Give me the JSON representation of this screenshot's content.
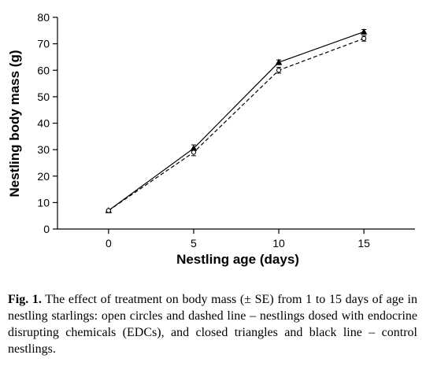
{
  "chart_data": {
    "type": "line",
    "title": "",
    "xlabel": "Nestling age (days)",
    "ylabel": "Nestling body mass (g)",
    "xlim": [
      -3,
      18
    ],
    "ylim": [
      0,
      80
    ],
    "x_ticks": [
      0,
      5,
      10,
      15
    ],
    "y_ticks": [
      0,
      10,
      20,
      30,
      40,
      50,
      60,
      70,
      80
    ],
    "grid": false,
    "series": [
      {
        "x": [
          0,
          5,
          10,
          15
        ],
        "values": [
          7,
          30.5,
          63,
          74.5
        ],
        "error": [
          0.3,
          1.3,
          0.9,
          0.9
        ],
        "marker": "triangle-filled",
        "line_style": "solid",
        "color": "#000000"
      },
      {
        "x": [
          0,
          5,
          10,
          15
        ],
        "values": [
          7,
          29,
          60,
          72
        ],
        "error": [
          0.3,
          1.3,
          1.1,
          1.0
        ],
        "marker": "circle-open",
        "line_style": "dashed",
        "color": "#000000"
      }
    ]
  },
  "caption": {
    "label": "Fig. 1.",
    "text": " The effect of treatment on body mass (± SE) from 1 to 15 days of age in nestling starlings: open circles and dashed line – nestlings dosed with endocrine disrupting chemicals (EDCs), and closed triangles and black line – control nestlings."
  }
}
